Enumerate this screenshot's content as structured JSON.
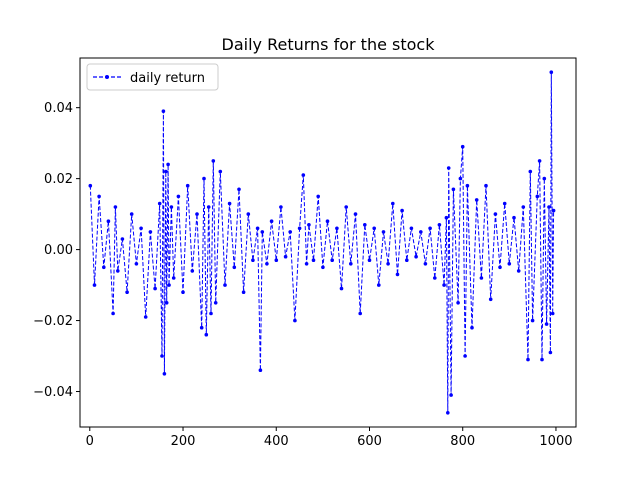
{
  "chart_data": {
    "type": "line",
    "title": "Daily Returns for the stock",
    "xlabel": "",
    "ylabel": "",
    "xlim": [
      -21,
      1043
    ],
    "ylim": [
      -0.05,
      0.054
    ],
    "xticks": [
      0,
      200,
      400,
      600,
      800,
      1000
    ],
    "yticks": [
      -0.04,
      -0.02,
      0.0,
      0.02,
      0.04
    ],
    "ytick_labels": [
      "−0.04",
      "−0.02",
      "0.00",
      "0.02",
      "0.04"
    ],
    "grid": false,
    "legend_position": "top-left",
    "series": [
      {
        "name": "daily return",
        "color": "#0000ff",
        "line_style": "dashed",
        "marker": "dot",
        "x": [
          1,
          10,
          20,
          30,
          40,
          50,
          55,
          60,
          70,
          80,
          90,
          100,
          110,
          120,
          130,
          140,
          150,
          155,
          158,
          160,
          163,
          165,
          168,
          170,
          175,
          180,
          190,
          200,
          210,
          220,
          230,
          240,
          245,
          250,
          255,
          260,
          265,
          270,
          280,
          290,
          300,
          310,
          320,
          330,
          340,
          350,
          360,
          366,
          370,
          380,
          390,
          400,
          410,
          420,
          430,
          440,
          450,
          458,
          465,
          470,
          480,
          490,
          500,
          510,
          520,
          530,
          540,
          550,
          560,
          570,
          580,
          590,
          600,
          610,
          620,
          630,
          640,
          650,
          660,
          670,
          680,
          690,
          700,
          710,
          720,
          730,
          740,
          750,
          760,
          765,
          768,
          770,
          775,
          780,
          790,
          795,
          800,
          805,
          810,
          820,
          830,
          840,
          850,
          860,
          870,
          880,
          890,
          900,
          910,
          920,
          930,
          940,
          945,
          950,
          960,
          965,
          970,
          975,
          980,
          985,
          988,
          990,
          993,
          995
        ],
        "y": [
          0.018,
          -0.01,
          0.015,
          -0.005,
          0.008,
          -0.018,
          0.012,
          -0.006,
          0.003,
          -0.012,
          0.01,
          -0.004,
          0.006,
          -0.019,
          0.005,
          -0.011,
          0.013,
          -0.03,
          0.039,
          -0.035,
          0.022,
          -0.015,
          0.024,
          -0.01,
          0.012,
          -0.008,
          0.015,
          -0.012,
          0.018,
          -0.006,
          0.01,
          -0.022,
          0.02,
          -0.024,
          0.012,
          -0.018,
          0.025,
          -0.015,
          0.022,
          -0.01,
          0.013,
          -0.005,
          0.017,
          -0.012,
          0.01,
          -0.003,
          0.006,
          -0.034,
          0.005,
          -0.004,
          0.008,
          -0.003,
          0.012,
          -0.002,
          0.005,
          -0.02,
          0.006,
          0.021,
          -0.004,
          0.007,
          -0.003,
          0.015,
          -0.005,
          0.008,
          -0.003,
          0.006,
          -0.011,
          0.012,
          -0.004,
          0.01,
          -0.018,
          0.007,
          -0.003,
          0.006,
          -0.01,
          0.005,
          -0.004,
          0.013,
          -0.007,
          0.011,
          -0.003,
          0.006,
          -0.002,
          0.005,
          -0.004,
          0.006,
          -0.008,
          0.007,
          -0.01,
          0.009,
          -0.046,
          0.023,
          -0.041,
          0.017,
          -0.015,
          0.02,
          0.029,
          -0.03,
          0.018,
          -0.022,
          0.014,
          -0.008,
          0.018,
          -0.014,
          0.01,
          -0.005,
          0.013,
          -0.004,
          0.009,
          -0.006,
          0.012,
          -0.031,
          0.022,
          -0.02,
          0.015,
          0.025,
          -0.031,
          0.02,
          -0.021,
          0.012,
          -0.029,
          0.05,
          -0.018,
          0.011
        ]
      }
    ]
  }
}
